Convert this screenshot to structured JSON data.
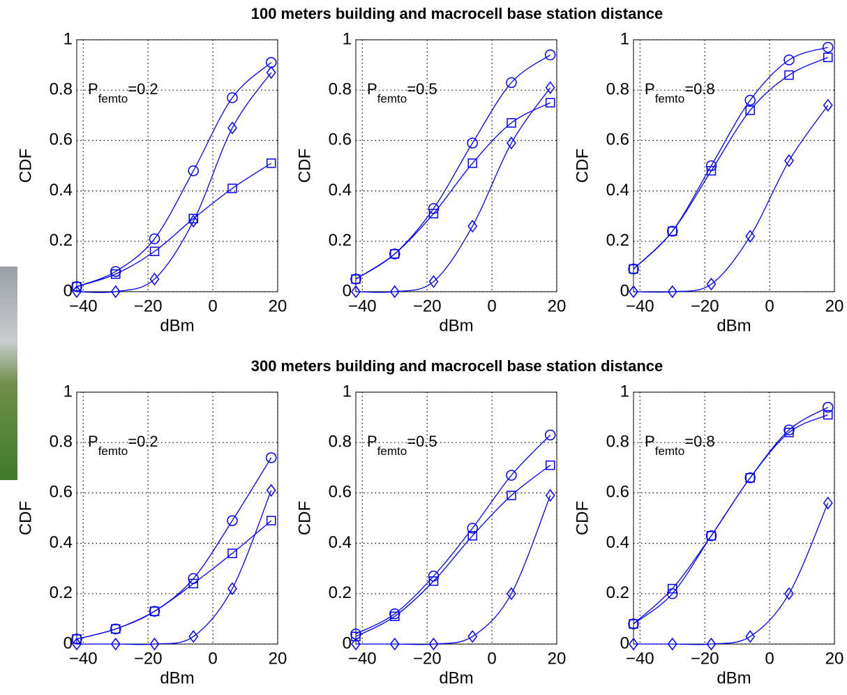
{
  "chart_data": [
    {
      "type": "line",
      "title": "100 meters building and macrocell base station distance",
      "xlabel": "dBm",
      "ylabel": "CDF",
      "annotation": {
        "base": "P",
        "subscript": "femto",
        "text": "=0.2"
      },
      "x": [
        -42,
        -30,
        -18,
        -6,
        6,
        18
      ],
      "xlim": [
        -42,
        20
      ],
      "ylim": [
        0,
        1
      ],
      "xticks": [
        {
          "value": -40,
          "label": "−40"
        },
        {
          "value": -20,
          "label": "−20"
        },
        0,
        20
      ],
      "yticks": [
        0,
        0.2,
        0.4,
        0.6,
        0.8,
        1
      ],
      "grid": true,
      "series": [
        {
          "marker": "circle",
          "color": "#0000ff",
          "values": [
            0.02,
            0.08,
            0.21,
            0.48,
            0.77,
            0.91
          ]
        },
        {
          "marker": "square",
          "color": "#0000ff",
          "values": [
            0.02,
            0.07,
            0.16,
            0.29,
            0.41,
            0.51
          ]
        },
        {
          "marker": "diamond",
          "color": "#0000ff",
          "values": [
            0,
            0,
            0.05,
            0.28,
            0.65,
            0.87
          ]
        }
      ]
    },
    {
      "type": "line",
      "xlabel": "dBm",
      "ylabel": "CDF",
      "annotation": {
        "base": "P",
        "subscript": "femto",
        "text": "=0.5"
      },
      "x": [
        -42,
        -30,
        -18,
        -6,
        6,
        18
      ],
      "xlim": [
        -42,
        20
      ],
      "ylim": [
        0,
        1
      ],
      "xticks": [
        {
          "value": -40,
          "label": "−40"
        },
        {
          "value": -20,
          "label": "−20"
        },
        0,
        20
      ],
      "yticks": [
        0,
        0.2,
        0.4,
        0.6,
        0.8,
        1
      ],
      "grid": true,
      "series": [
        {
          "marker": "circle",
          "color": "#0000ff",
          "values": [
            0.05,
            0.15,
            0.33,
            0.59,
            0.83,
            0.94
          ]
        },
        {
          "marker": "square",
          "color": "#0000ff",
          "values": [
            0.05,
            0.15,
            0.31,
            0.51,
            0.67,
            0.75
          ]
        },
        {
          "marker": "diamond",
          "color": "#0000ff",
          "values": [
            0,
            0,
            0.04,
            0.26,
            0.59,
            0.81
          ]
        }
      ]
    },
    {
      "type": "line",
      "xlabel": "dBm",
      "ylabel": "CDF",
      "annotation": {
        "base": "P",
        "subscript": "femto",
        "text": "=0.8"
      },
      "x": [
        -42,
        -30,
        -18,
        -6,
        6,
        18
      ],
      "xlim": [
        -42,
        20
      ],
      "ylim": [
        0,
        1
      ],
      "xticks": [
        {
          "value": -40,
          "label": "−40"
        },
        {
          "value": -20,
          "label": "−20"
        },
        0,
        20
      ],
      "yticks": [
        0,
        0.2,
        0.4,
        0.6,
        0.8,
        1
      ],
      "grid": true,
      "series": [
        {
          "marker": "circle",
          "color": "#0000ff",
          "values": [
            0.09,
            0.24,
            0.5,
            0.76,
            0.92,
            0.97
          ]
        },
        {
          "marker": "square",
          "color": "#0000ff",
          "values": [
            0.09,
            0.24,
            0.48,
            0.72,
            0.86,
            0.93
          ]
        },
        {
          "marker": "diamond",
          "color": "#0000ff",
          "values": [
            0,
            0,
            0.03,
            0.22,
            0.52,
            0.74
          ]
        }
      ]
    },
    {
      "type": "line",
      "title": "300 meters building and macrocell base station distance",
      "xlabel": "dBm",
      "ylabel": "CDF",
      "annotation": {
        "base": "P",
        "subscript": "femto",
        "text": "=0.2"
      },
      "x": [
        -42,
        -30,
        -18,
        -6,
        6,
        18
      ],
      "xlim": [
        -42,
        20
      ],
      "ylim": [
        0,
        1
      ],
      "xticks": [
        {
          "value": -40,
          "label": "−40"
        },
        {
          "value": -20,
          "label": "−20"
        },
        0,
        20
      ],
      "yticks": [
        0,
        0.2,
        0.4,
        0.6,
        0.8,
        1
      ],
      "grid": true,
      "series": [
        {
          "marker": "circle",
          "color": "#0000ff",
          "values": [
            0.02,
            0.06,
            0.13,
            0.26,
            0.49,
            0.74
          ]
        },
        {
          "marker": "square",
          "color": "#0000ff",
          "values": [
            0.02,
            0.06,
            0.13,
            0.24,
            0.36,
            0.49
          ]
        },
        {
          "marker": "diamond",
          "color": "#0000ff",
          "values": [
            0,
            0,
            0,
            0.03,
            0.22,
            0.61
          ]
        }
      ]
    },
    {
      "type": "line",
      "xlabel": "dBm",
      "ylabel": "CDF",
      "annotation": {
        "base": "P",
        "subscript": "femto",
        "text": "=0.5"
      },
      "x": [
        -42,
        -30,
        -18,
        -6,
        6,
        18
      ],
      "xlim": [
        -42,
        20
      ],
      "ylim": [
        0,
        1
      ],
      "xticks": [
        {
          "value": -40,
          "label": "−40"
        },
        {
          "value": -20,
          "label": "−20"
        },
        0,
        20
      ],
      "yticks": [
        0,
        0.2,
        0.4,
        0.6,
        0.8,
        1
      ],
      "grid": true,
      "series": [
        {
          "marker": "circle",
          "color": "#0000ff",
          "values": [
            0.04,
            0.12,
            0.27,
            0.46,
            0.67,
            0.83
          ]
        },
        {
          "marker": "square",
          "color": "#0000ff",
          "values": [
            0.03,
            0.11,
            0.25,
            0.43,
            0.59,
            0.71
          ]
        },
        {
          "marker": "diamond",
          "color": "#0000ff",
          "values": [
            0,
            0,
            0,
            0.03,
            0.2,
            0.59
          ]
        }
      ]
    },
    {
      "type": "line",
      "xlabel": "dBm",
      "ylabel": "CDF",
      "annotation": {
        "base": "P",
        "subscript": "femto",
        "text": "=0.8"
      },
      "x": [
        -42,
        -30,
        -18,
        -6,
        6,
        18
      ],
      "xlim": [
        -42,
        20
      ],
      "ylim": [
        0,
        1
      ],
      "xticks": [
        {
          "value": -40,
          "label": "−40"
        },
        {
          "value": -20,
          "label": "−20"
        },
        0,
        20
      ],
      "yticks": [
        0,
        0.2,
        0.4,
        0.6,
        0.8,
        1
      ],
      "grid": true,
      "series": [
        {
          "marker": "circle",
          "color": "#0000ff",
          "values": [
            0.08,
            0.2,
            0.43,
            0.66,
            0.85,
            0.94
          ]
        },
        {
          "marker": "square",
          "color": "#0000ff",
          "values": [
            0.08,
            0.22,
            0.43,
            0.66,
            0.84,
            0.91
          ]
        },
        {
          "marker": "diamond",
          "color": "#0000ff",
          "values": [
            0,
            0,
            0,
            0.03,
            0.2,
            0.56
          ]
        }
      ]
    }
  ]
}
